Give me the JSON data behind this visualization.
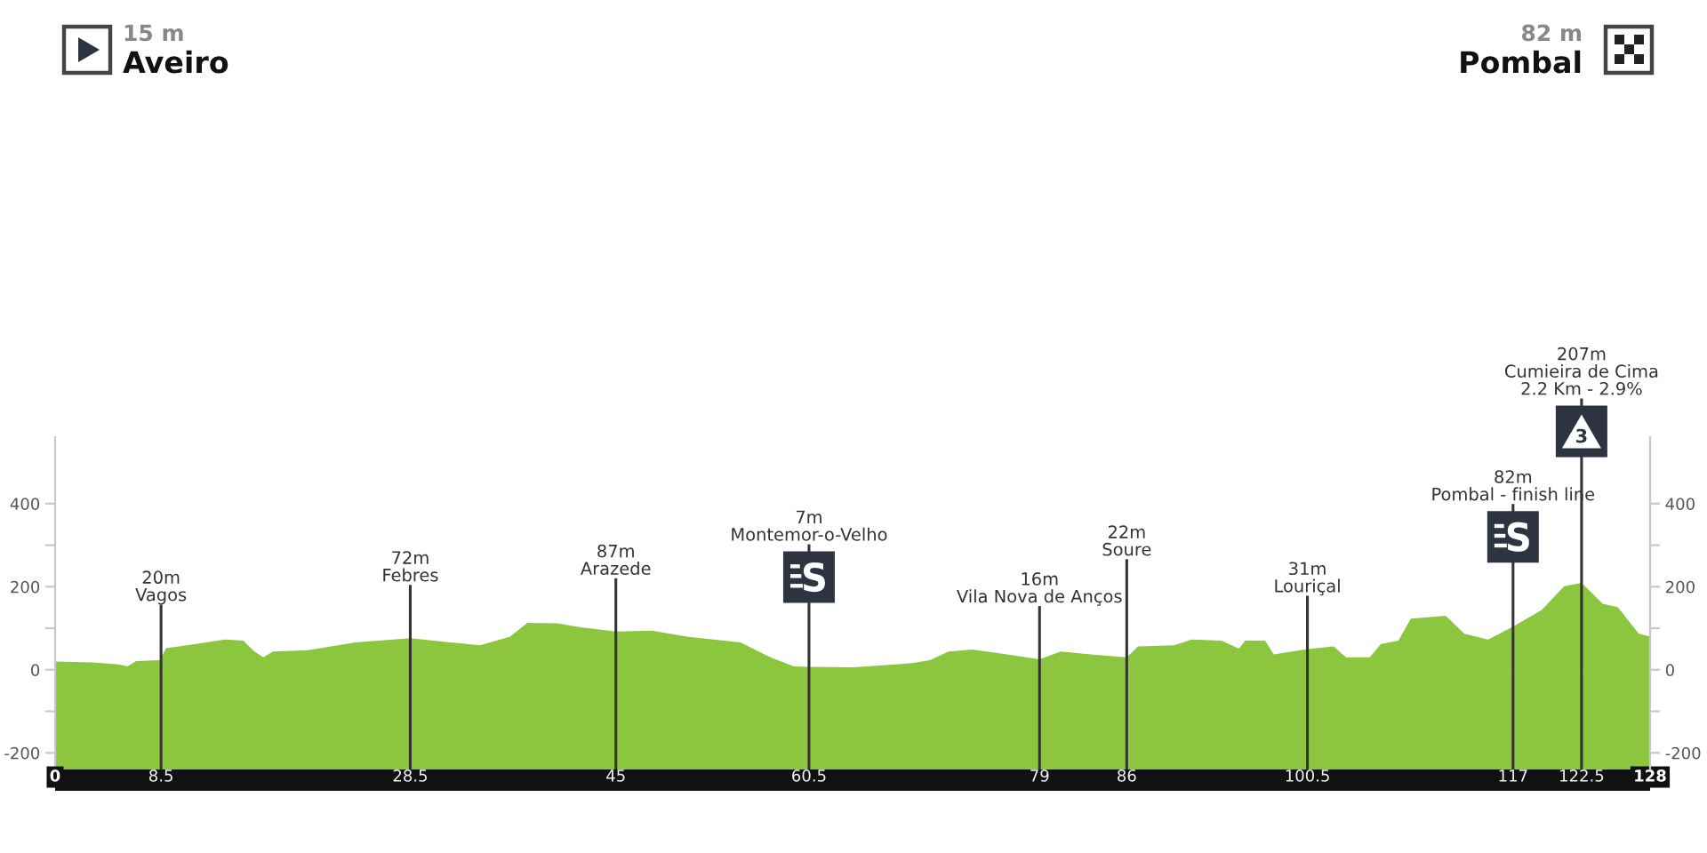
{
  "chart_data": {
    "type": "area",
    "color": "#8cc63f",
    "x": [
      0,
      3,
      5.1,
      5.8,
      6.5,
      8.4,
      8.9,
      11.3,
      13.6,
      15.1,
      16,
      16.7,
      17.5,
      20.3,
      24.1,
      28.5,
      31.7,
      34.1,
      36.5,
      37.9,
      40.3,
      42.2,
      45,
      47.9,
      50.7,
      55,
      57.4,
      59.3,
      60.5,
      64.1,
      68.8,
      70.2,
      71.7,
      73.6,
      76.4,
      79,
      80.7,
      83.1,
      86,
      86.9,
      89.8,
      91.2,
      93.6,
      95,
      95.5,
      97.1,
      97.8,
      100.5,
      102.6,
      103.6,
      105.5,
      106.4,
      107.8,
      108.8,
      111.6,
      113.1,
      115,
      117,
      119.3,
      121.1,
      122.5,
      124.2,
      125.4,
      127.1,
      128
    ],
    "values": [
      20,
      18,
      13,
      8,
      21,
      23,
      52,
      62,
      73,
      70,
      44,
      30,
      44,
      47,
      66,
      76,
      66,
      59,
      80,
      113,
      112,
      102,
      92,
      94,
      80,
      66,
      30,
      8,
      7,
      6,
      16,
      23,
      44,
      49,
      37,
      25,
      44,
      37,
      30,
      56,
      59,
      73,
      70,
      51,
      70,
      70,
      37,
      50,
      56,
      30,
      30,
      62,
      70,
      123,
      130,
      87,
      73,
      104,
      144,
      201,
      209,
      159,
      151,
      87,
      80
    ],
    "xlim": [
      0,
      128
    ],
    "xticks": [
      0,
      8.5,
      28.5,
      45,
      60.5,
      79,
      86,
      100.5,
      117,
      122.5,
      128
    ],
    "ylim": [
      -240,
      560
    ],
    "yticks": [
      -200,
      {
        "value": -100,
        "label": null
      },
      0,
      {
        "value": 100,
        "label": null
      },
      200,
      {
        "value": 300,
        "label": null
      },
      400
    ],
    "y2lim": [
      -240,
      560
    ],
    "y2ticks": [
      -200,
      {
        "value": -100,
        "label": null
      },
      0,
      {
        "value": 100,
        "label": null
      },
      200,
      {
        "value": 300,
        "label": null
      },
      400
    ],
    "bands": [
      {
        "axis": "y",
        "from": -240,
        "to": 0,
        "color": "#8cc63f"
      }
    ],
    "ref_lines": [
      {
        "axis": "x",
        "value": 8.5,
        "label": "20m\nVagos",
        "color": "#333333"
      },
      {
        "axis": "x",
        "value": 28.5,
        "label": "72m\nFebres",
        "color": "#333333"
      },
      {
        "axis": "x",
        "value": 45,
        "label": "87m\nArazede",
        "color": "#333333"
      },
      {
        "axis": "x",
        "value": 60.5,
        "label": "7m\nMontemor-o-Velho",
        "color": "#333333"
      },
      {
        "axis": "x",
        "value": 79,
        "label": "16m\nVila Nova de Anços",
        "color": "#333333"
      },
      {
        "axis": "x",
        "value": 86,
        "label": "22m\nSoure",
        "color": "#333333"
      },
      {
        "axis": "x",
        "value": 100.5,
        "label": "31m\nLouriçal",
        "color": "#333333"
      },
      {
        "axis": "x",
        "value": 117,
        "label": "82m\nPombal - finish line",
        "color": "#333333"
      },
      {
        "axis": "x",
        "value": 122.5,
        "label": "207m\nCumieira de Cima\n2.2 Km - 2.9%",
        "color": "#333333"
      }
    ],
    "annotations": [
      "15 m",
      "Aveiro",
      "82 m",
      "Pombal",
      "3"
    ]
  }
}
